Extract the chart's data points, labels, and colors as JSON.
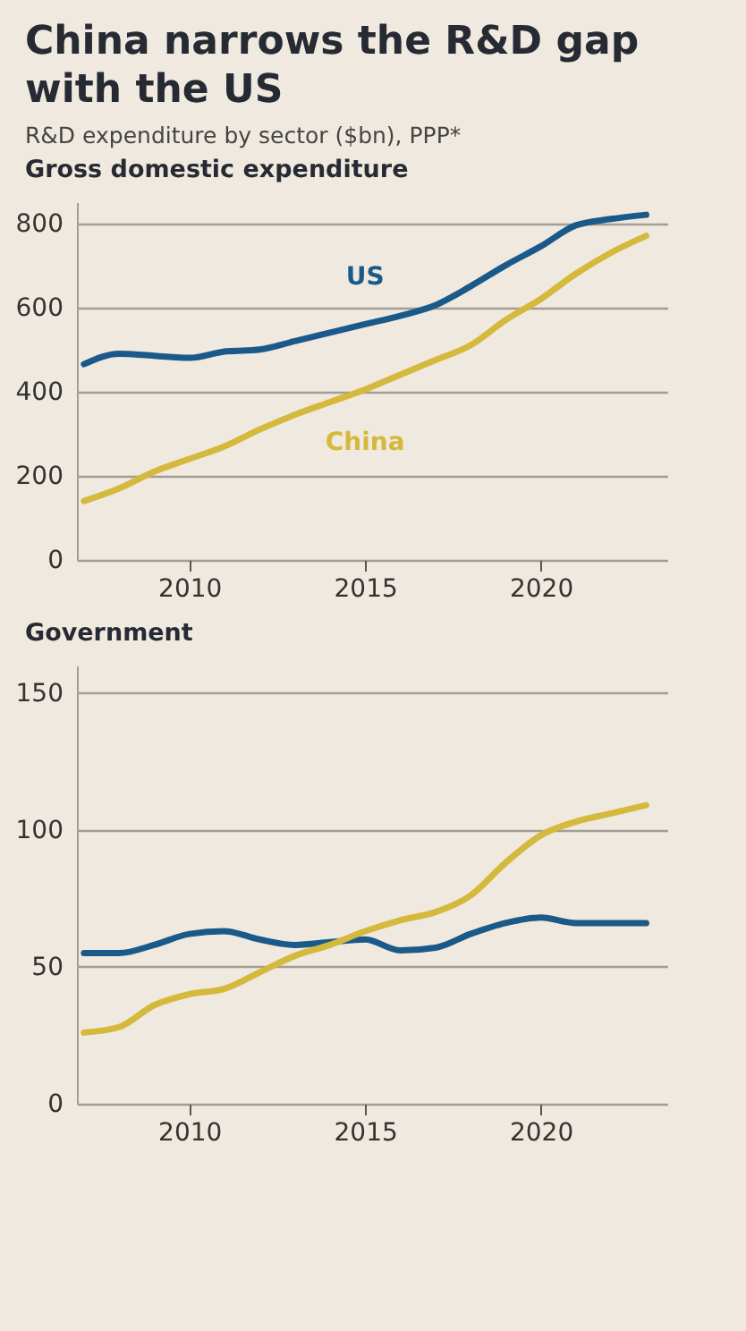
{
  "chart_data": [
    {
      "type": "line",
      "title": "China narrows the R&D gap with the US",
      "subtitle": "R&D expenditure by sector ($bn), PPP*",
      "annotations": [
        "Gross domestic expenditure"
      ],
      "x": [
        2007,
        2008,
        2009,
        2010,
        2011,
        2012,
        2013,
        2014,
        2015,
        2016,
        2017,
        2018,
        2019,
        2020,
        2021,
        2022,
        2023
      ],
      "series": [
        {
          "name": "US",
          "color": "#1a5a8a",
          "values": [
            465,
            490,
            485,
            480,
            495,
            500,
            520,
            540,
            560,
            580,
            605,
            650,
            700,
            745,
            795,
            810,
            820
          ]
        },
        {
          "name": "China",
          "color": "#d4b93c",
          "values": [
            140,
            170,
            210,
            240,
            270,
            310,
            345,
            375,
            405,
            440,
            475,
            510,
            570,
            620,
            680,
            730,
            770
          ]
        }
      ],
      "xlim": [
        2006.8,
        2023.6
      ],
      "xticks": [
        2010,
        2015,
        2020
      ],
      "ylim": [
        0,
        850
      ],
      "yticks": [
        0,
        200,
        400,
        600,
        800
      ],
      "grid": "y"
    },
    {
      "type": "line",
      "title": "Government",
      "x": [
        2007,
        2008,
        2009,
        2010,
        2011,
        2012,
        2013,
        2014,
        2015,
        2016,
        2017,
        2018,
        2019,
        2020,
        2021,
        2022,
        2023
      ],
      "series": [
        {
          "color": "#1a5a8a",
          "values": [
            55,
            55,
            58,
            62,
            63,
            60,
            58,
            59,
            60,
            56,
            57,
            62,
            66,
            68,
            66,
            66,
            66
          ]
        },
        {
          "color": "#d4b93c",
          "values": [
            26,
            28,
            36,
            40,
            42,
            48,
            54,
            58,
            63,
            67,
            70,
            76,
            88,
            98,
            103,
            106,
            109
          ]
        }
      ],
      "xlim": [
        2006.8,
        2023.6
      ],
      "xticks": [
        2010,
        2015,
        2020
      ],
      "ylim": [
        0,
        160
      ],
      "yticks": [
        0,
        50,
        100,
        150
      ],
      "grid": "y"
    }
  ]
}
